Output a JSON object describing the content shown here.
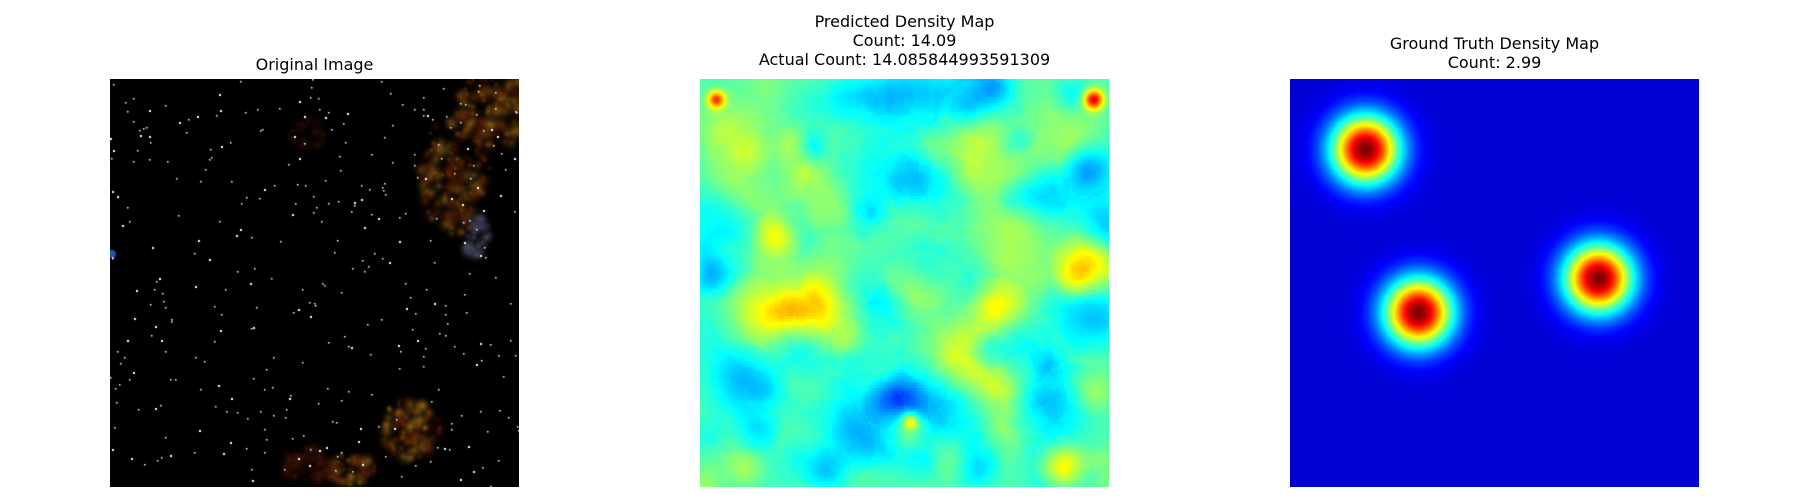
{
  "panels": [
    {
      "title_lines": [
        "Original Image"
      ],
      "kind": "starfield"
    },
    {
      "title_lines": [
        "Predicted Density Map",
        "Count: 14.09",
        "Actual Count: 14.085844993591309"
      ],
      "kind": "predicted-density",
      "colormap": "jet"
    },
    {
      "title_lines": [
        "Ground Truth Density Map",
        "Count: 2.99"
      ],
      "kind": "ground-truth-density",
      "colormap": "jet"
    }
  ]
}
